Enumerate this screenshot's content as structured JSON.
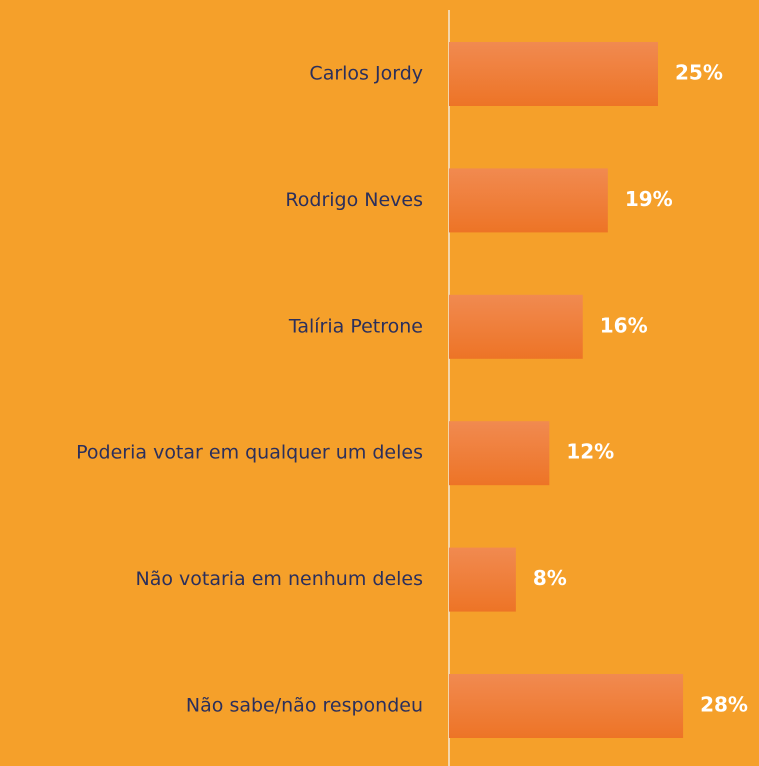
{
  "chart_data": {
    "type": "barh",
    "categories": [
      "Carlos Jordy",
      "Rodrigo Neves",
      "Talíria Petrone",
      "Poderia votar em qualquer um deles",
      "Não votaria em nenhum deles",
      "Não sabe/não respondeu"
    ],
    "values": [
      25,
      19,
      16,
      12,
      8,
      28
    ],
    "value_labels": [
      "25%",
      "19%",
      "16%",
      "12%",
      "8%",
      "28%"
    ],
    "color": "#ED7426",
    "background": "#F5A02A"
  }
}
